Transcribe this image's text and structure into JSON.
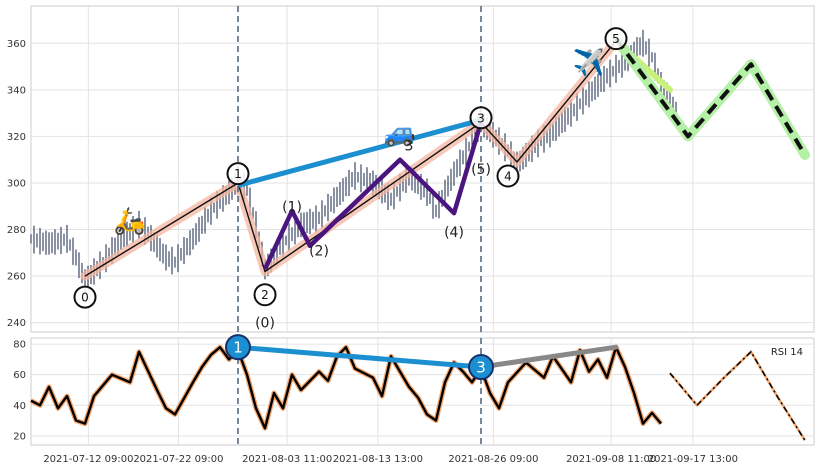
{
  "chart_data": [
    {
      "type": "line",
      "panel": "price",
      "title": "",
      "xlabel": "",
      "ylabel": "",
      "x_range": [
        "2021-07-06",
        "2021-10-01"
      ],
      "ylim": [
        236,
        376
      ],
      "yticks": [
        240,
        260,
        280,
        300,
        320,
        340,
        360
      ],
      "grid": true,
      "price_path": [
        {
          "x": "2021-07-06",
          "y": 276
        },
        {
          "x": "2021-07-08",
          "y": 274
        },
        {
          "x": "2021-07-10",
          "y": 276
        },
        {
          "x": "2021-07-11",
          "y": 268
        },
        {
          "x": "2021-07-12",
          "y": 258
        },
        {
          "x": "2021-07-14",
          "y": 266
        },
        {
          "x": "2021-07-16",
          "y": 276
        },
        {
          "x": "2021-07-18",
          "y": 282
        },
        {
          "x": "2021-07-19",
          "y": 278
        },
        {
          "x": "2021-07-21",
          "y": 268
        },
        {
          "x": "2021-07-22",
          "y": 266
        },
        {
          "x": "2021-07-24",
          "y": 276
        },
        {
          "x": "2021-07-26",
          "y": 288
        },
        {
          "x": "2021-07-28",
          "y": 296
        },
        {
          "x": "2021-07-29",
          "y": 301
        },
        {
          "x": "2021-07-30",
          "y": 297
        },
        {
          "x": "2021-07-31",
          "y": 282
        },
        {
          "x": "2021-08-01",
          "y": 263
        },
        {
          "x": "2021-08-03",
          "y": 274
        },
        {
          "x": "2021-08-05",
          "y": 282
        },
        {
          "x": "2021-08-07",
          "y": 285
        },
        {
          "x": "2021-08-09",
          "y": 294
        },
        {
          "x": "2021-08-11",
          "y": 303
        },
        {
          "x": "2021-08-13",
          "y": 300
        },
        {
          "x": "2021-08-15",
          "y": 293
        },
        {
          "x": "2021-08-17",
          "y": 303
        },
        {
          "x": "2021-08-19",
          "y": 296
        },
        {
          "x": "2021-08-20",
          "y": 288
        },
        {
          "x": "2021-08-22",
          "y": 304
        },
        {
          "x": "2021-08-24",
          "y": 318
        },
        {
          "x": "2021-08-25",
          "y": 326
        },
        {
          "x": "2021-08-26",
          "y": 322
        },
        {
          "x": "2021-08-28",
          "y": 314
        },
        {
          "x": "2021-08-29",
          "y": 308
        },
        {
          "x": "2021-08-31",
          "y": 316
        },
        {
          "x": "2021-09-02",
          "y": 322
        },
        {
          "x": "2021-09-04",
          "y": 330
        },
        {
          "x": "2021-09-06",
          "y": 338
        },
        {
          "x": "2021-09-08",
          "y": 346
        },
        {
          "x": "2021-09-10",
          "y": 352
        },
        {
          "x": "2021-09-12",
          "y": 360
        },
        {
          "x": "2021-09-13",
          "y": 354
        },
        {
          "x": "2021-09-14",
          "y": 342
        },
        {
          "x": "2021-09-15",
          "y": 336
        },
        {
          "x": "2021-09-16",
          "y": 326
        }
      ],
      "series": [
        {
          "name": "",
          "style": "salmon-band",
          "color": "#f4b5a0",
          "points": [
            {
              "x": "2021-07-12",
              "y": 260
            },
            {
              "x": "2021-07-29",
              "y": 300
            },
            {
              "x": "2021-08-01",
              "y": 262
            },
            {
              "x": "2021-08-25",
              "y": 326
            },
            {
              "x": "2021-08-29",
              "y": 309
            },
            {
              "x": "2021-09-09",
              "y": 361
            }
          ]
        },
        {
          "name": "",
          "style": "black-thin",
          "color": "#111111",
          "points": [
            {
              "x": "2021-07-12",
              "y": 260
            },
            {
              "x": "2021-07-29",
              "y": 300
            },
            {
              "x": "2021-08-01",
              "y": 262
            },
            {
              "x": "2021-08-25",
              "y": 326
            },
            {
              "x": "2021-08-29",
              "y": 309
            },
            {
              "x": "2021-09-09",
              "y": 361
            }
          ]
        },
        {
          "name": "",
          "style": "purple",
          "color": "#4b1580",
          "points": [
            {
              "x": "2021-08-01",
              "y": 263
            },
            {
              "x": "2021-08-04",
              "y": 288
            },
            {
              "x": "2021-08-06",
              "y": 273
            },
            {
              "x": "2021-08-16",
              "y": 310
            },
            {
              "x": "2021-08-22",
              "y": 287
            },
            {
              "x": "2021-08-25",
              "y": 326
            }
          ]
        },
        {
          "name": "",
          "style": "blue-trend",
          "color": "#1b8fd0",
          "points": [
            {
              "x": "2021-07-29",
              "y": 299
            },
            {
              "x": "2021-08-25",
              "y": 327
            }
          ]
        },
        {
          "name": "",
          "style": "yellow-green",
          "color": "#c9f07a",
          "points": [
            {
              "x": "2021-09-09",
              "y": 361
            },
            {
              "x": "2021-09-15",
              "y": 340
            }
          ]
        },
        {
          "name": "",
          "style": "projection",
          "color": "#111111",
          "points": [
            {
              "x": "2021-09-09",
              "y": 362
            },
            {
              "x": "2021-09-17",
              "y": 320
            },
            {
              "x": "2021-09-24",
              "y": 351
            },
            {
              "x": "2021-09-30",
              "y": 312
            }
          ]
        }
      ],
      "vlines": [
        "2021-07-29",
        "2021-08-25"
      ],
      "wave_labels": [
        {
          "text": "0",
          "x": "2021-07-12",
          "y": 251,
          "circled": true
        },
        {
          "text": "1",
          "x": "2021-07-29",
          "y": 304,
          "circled": true
        },
        {
          "text": "2",
          "x": "2021-08-01",
          "y": 252,
          "circled": true
        },
        {
          "text": "3",
          "x": "2021-08-25",
          "y": 328,
          "circled": true
        },
        {
          "text": "4",
          "x": "2021-08-28",
          "y": 303,
          "circled": true
        },
        {
          "text": "5",
          "x": "2021-09-09",
          "y": 362,
          "circled": true
        },
        {
          "text": "3",
          "x": "2021-08-17",
          "y": 316,
          "circled": false
        },
        {
          "text": "(1)",
          "x": "2021-08-04",
          "y": 290,
          "circled": false
        },
        {
          "text": "(2)",
          "x": "2021-08-07",
          "y": 271,
          "circled": false
        },
        {
          "text": "(4)",
          "x": "2021-08-22",
          "y": 279,
          "circled": false
        },
        {
          "text": "(5)",
          "x": "2021-08-25",
          "y": 306,
          "circled": false
        },
        {
          "text": "(0)",
          "x": "2021-08-01",
          "y": 240,
          "circled": false
        }
      ],
      "emoji_markers": [
        {
          "glyph": "🛵",
          "x": "2021-07-17",
          "y": 280
        },
        {
          "glyph": "🚙",
          "x": "2021-08-16",
          "y": 318
        },
        {
          "glyph": "✈️",
          "x": "2021-09-06",
          "y": 348
        }
      ]
    },
    {
      "type": "line",
      "panel": "rsi",
      "legend": "RSI 14",
      "ylim": [
        14,
        84
      ],
      "yticks": [
        20,
        40,
        60,
        80
      ],
      "grid": true,
      "xticks": [
        "2021-07-12 09:00",
        "2021-07-22 09:00",
        "2021-08-03 11:00",
        "2021-08-13 13:00",
        "2021-08-26 09:00",
        "2021-09-08 11:00",
        "2021-09-17 13:00"
      ],
      "rsi_path": [
        {
          "x": "2021-07-06",
          "y": 43
        },
        {
          "x": "2021-07-07",
          "y": 40
        },
        {
          "x": "2021-07-08",
          "y": 52
        },
        {
          "x": "2021-07-09",
          "y": 38
        },
        {
          "x": "2021-07-10",
          "y": 46
        },
        {
          "x": "2021-07-11",
          "y": 30
        },
        {
          "x": "2021-07-12",
          "y": 28
        },
        {
          "x": "2021-07-13",
          "y": 46
        },
        {
          "x": "2021-07-15",
          "y": 60
        },
        {
          "x": "2021-07-17",
          "y": 55
        },
        {
          "x": "2021-07-18",
          "y": 75
        },
        {
          "x": "2021-07-20",
          "y": 50
        },
        {
          "x": "2021-07-21",
          "y": 38
        },
        {
          "x": "2021-07-22",
          "y": 34
        },
        {
          "x": "2021-07-24",
          "y": 55
        },
        {
          "x": "2021-07-25",
          "y": 65
        },
        {
          "x": "2021-07-26",
          "y": 73
        },
        {
          "x": "2021-07-27",
          "y": 78
        },
        {
          "x": "2021-07-28",
          "y": 70
        },
        {
          "x": "2021-07-29",
          "y": 76
        },
        {
          "x": "2021-07-30",
          "y": 60
        },
        {
          "x": "2021-07-31",
          "y": 38
        },
        {
          "x": "2021-08-01",
          "y": 25
        },
        {
          "x": "2021-08-02",
          "y": 48
        },
        {
          "x": "2021-08-03",
          "y": 38
        },
        {
          "x": "2021-08-04",
          "y": 60
        },
        {
          "x": "2021-08-05",
          "y": 50
        },
        {
          "x": "2021-08-07",
          "y": 62
        },
        {
          "x": "2021-08-08",
          "y": 56
        },
        {
          "x": "2021-08-09",
          "y": 72
        },
        {
          "x": "2021-08-10",
          "y": 78
        },
        {
          "x": "2021-08-11",
          "y": 64
        },
        {
          "x": "2021-08-13",
          "y": 58
        },
        {
          "x": "2021-08-14",
          "y": 46
        },
        {
          "x": "2021-08-15",
          "y": 72
        },
        {
          "x": "2021-08-17",
          "y": 52
        },
        {
          "x": "2021-08-18",
          "y": 45
        },
        {
          "x": "2021-08-19",
          "y": 34
        },
        {
          "x": "2021-08-20",
          "y": 30
        },
        {
          "x": "2021-08-21",
          "y": 55
        },
        {
          "x": "2021-08-22",
          "y": 68
        },
        {
          "x": "2021-08-23",
          "y": 62
        },
        {
          "x": "2021-08-24",
          "y": 55
        },
        {
          "x": "2021-08-25",
          "y": 64
        },
        {
          "x": "2021-08-26",
          "y": 48
        },
        {
          "x": "2021-08-27",
          "y": 38
        },
        {
          "x": "2021-08-28",
          "y": 55
        },
        {
          "x": "2021-08-30",
          "y": 68
        },
        {
          "x": "2021-09-01",
          "y": 58
        },
        {
          "x": "2021-09-02",
          "y": 72
        },
        {
          "x": "2021-09-04",
          "y": 55
        },
        {
          "x": "2021-09-05",
          "y": 76
        },
        {
          "x": "2021-09-06",
          "y": 62
        },
        {
          "x": "2021-09-07",
          "y": 70
        },
        {
          "x": "2021-09-08",
          "y": 58
        },
        {
          "x": "2021-09-09",
          "y": 78
        },
        {
          "x": "2021-09-10",
          "y": 65
        },
        {
          "x": "2021-09-11",
          "y": 48
        },
        {
          "x": "2021-09-12",
          "y": 28
        },
        {
          "x": "2021-09-13",
          "y": 35
        },
        {
          "x": "2021-09-14",
          "y": 28
        }
      ],
      "rsi_projection": [
        {
          "x": "2021-09-15",
          "y": 61
        },
        {
          "x": "2021-09-18",
          "y": 40
        },
        {
          "x": "2021-09-21",
          "y": 58
        },
        {
          "x": "2021-09-24",
          "y": 75
        },
        {
          "x": "2021-09-27",
          "y": 45
        },
        {
          "x": "2021-09-30",
          "y": 17
        }
      ],
      "series": [
        {
          "name": "",
          "style": "blue-trend",
          "color": "#1b8fd0",
          "points": [
            {
              "x": "2021-07-29",
              "y": 78
            },
            {
              "x": "2021-08-25",
              "y": 65
            }
          ]
        },
        {
          "name": "",
          "style": "gray-trend",
          "color": "#888888",
          "points": [
            {
              "x": "2021-08-25",
              "y": 65
            },
            {
              "x": "2021-09-09",
              "y": 78
            }
          ]
        }
      ],
      "markers": [
        {
          "text": "1",
          "x": "2021-07-29",
          "y": 78
        },
        {
          "text": "3",
          "x": "2021-08-25",
          "y": 65
        }
      ]
    }
  ]
}
